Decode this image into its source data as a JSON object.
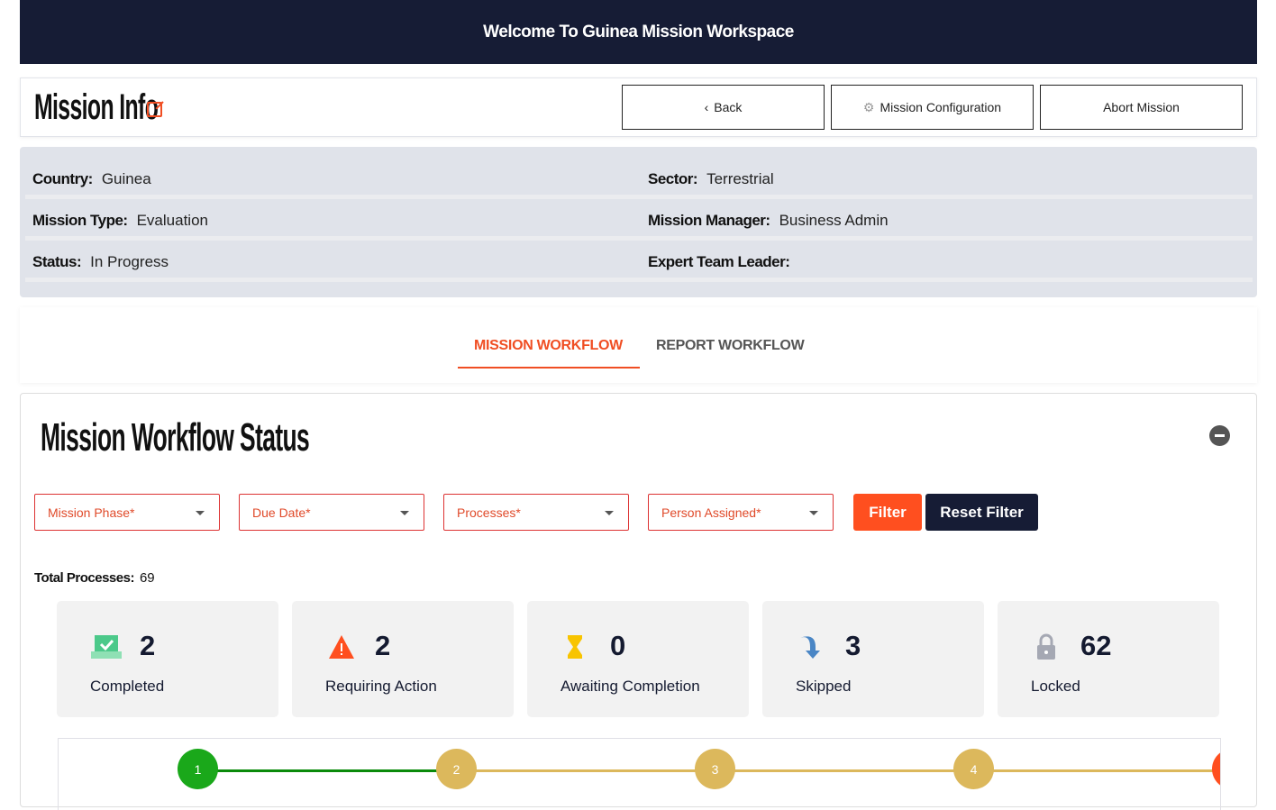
{
  "banner": "Welcome To Guinea Mission Workspace",
  "header": {
    "title": "Mission Info",
    "back": "Back",
    "config": "Mission Configuration",
    "abort": "Abort Mission"
  },
  "info": {
    "country": {
      "label": "Country:",
      "value": "Guinea"
    },
    "sector": {
      "label": "Sector:",
      "value": "Terrestrial"
    },
    "mission_type": {
      "label": "Mission Type:",
      "value": "Evaluation"
    },
    "manager": {
      "label": "Mission Manager:",
      "value": "Business Admin"
    },
    "status": {
      "label": "Status:",
      "value": "In Progress"
    },
    "leader": {
      "label": "Expert Team Leader:",
      "value": ""
    }
  },
  "tabs": [
    {
      "label": "MISSION WORKFLOW",
      "active": true
    },
    {
      "label": "REPORT WORKFLOW",
      "active": false
    }
  ],
  "workflow": {
    "title": "Mission Workflow Status",
    "filters": [
      "Mission Phase*",
      "Due Date*",
      "Processes*",
      "Person Assigned*"
    ],
    "filter_btn": "Filter",
    "reset_btn": "Reset Filter",
    "total_label": "Total Processes:",
    "total_value": "69",
    "cards": [
      {
        "icon": "inbox-check-icon",
        "count": "2",
        "label": "Completed"
      },
      {
        "icon": "warning-icon",
        "count": "2",
        "label": "Requiring Action"
      },
      {
        "icon": "hourglass-icon",
        "count": "0",
        "label": "Awaiting Completion"
      },
      {
        "icon": "skip-arrow-icon",
        "count": "3",
        "label": "Skipped"
      },
      {
        "icon": "lock-icon",
        "count": "62",
        "label": "Locked"
      }
    ],
    "steps": [
      "1",
      "2",
      "3",
      "4"
    ]
  },
  "colors": {
    "accent": "#ff4f1f",
    "navy": "#161c35",
    "done": "#1aa81a",
    "pending": "#dcb85c"
  }
}
